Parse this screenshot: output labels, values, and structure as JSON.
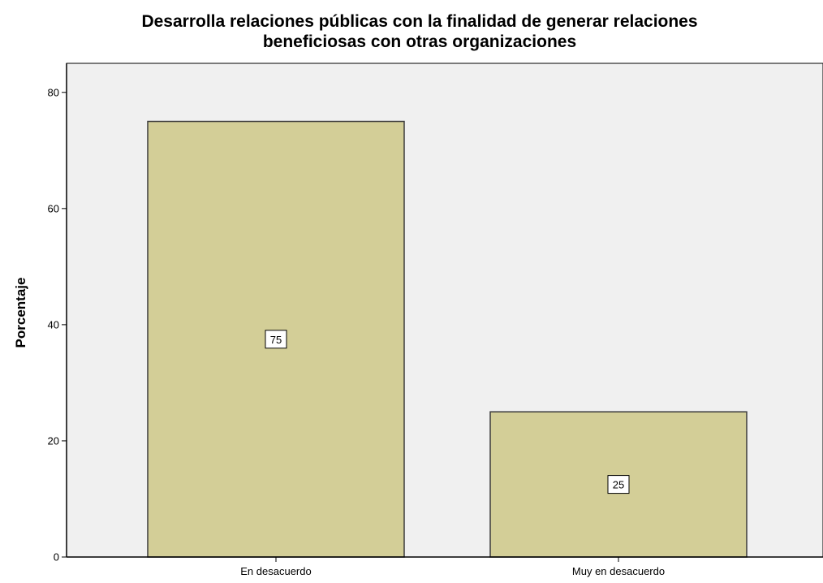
{
  "chart_data": {
    "type": "bar",
    "title": [
      "Desarrolla relaciones públicas con la finalidad de generar relaciones",
      "beneficiosas con otras organizaciones"
    ],
    "xlabel": "",
    "ylabel": "Porcentaje",
    "categories": [
      "En desacuerdo",
      "Muy en desacuerdo"
    ],
    "values": [
      75,
      25
    ],
    "data_labels": [
      "75",
      "25"
    ],
    "ylim": [
      0,
      85
    ],
    "yticks": [
      0,
      20,
      40,
      60,
      80
    ],
    "grid": false,
    "legend": "none"
  },
  "colors": {
    "plot_background": "#f0f0f0",
    "bar_fill": "#d3ce97",
    "bar_stroke": "#3c3c3c",
    "label_box": "#ffffff"
  }
}
